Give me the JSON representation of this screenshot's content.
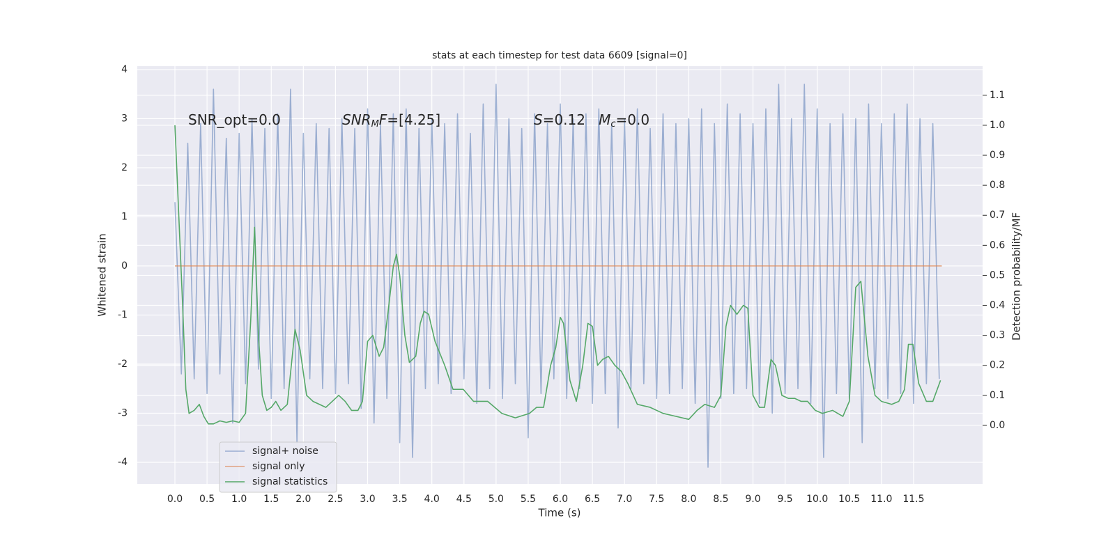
{
  "chart_data": {
    "type": "line",
    "title": "stats at each timestep for test data 6609 [signal=0]",
    "xlabel": "Time (s)",
    "ylabel": "Whitened strain",
    "y2label": "Detection probability/MF",
    "xlim": [
      -0.586,
      12.575
    ],
    "ylim": [
      -4.44,
      4.07
    ],
    "y2lim": [
      -0.195,
      1.197
    ],
    "grid": true,
    "legend": "lower left",
    "xticks": [
      {
        "value": 0,
        "label": "0.0"
      },
      0.5,
      {
        "value": 1,
        "label": "1.0"
      },
      1.5,
      {
        "value": 2,
        "label": "2.0"
      },
      2.5,
      {
        "value": 3,
        "label": "3.0"
      },
      3.5,
      {
        "value": 4,
        "label": "4.0"
      },
      4.5,
      {
        "value": 5,
        "label": "5.0"
      },
      5.5,
      {
        "value": 6,
        "label": "6.0"
      },
      6.5,
      {
        "value": 7,
        "label": "7.0"
      },
      7.5,
      {
        "value": 8,
        "label": "8.0"
      },
      8.5,
      {
        "value": 9,
        "label": "9.0"
      },
      9.5,
      {
        "value": 10,
        "label": "10.0"
      },
      10.5,
      {
        "value": 11,
        "label": "11.0"
      },
      11.5
    ],
    "yticks": [
      -4,
      -3,
      -2,
      -1,
      0,
      1,
      2,
      3,
      4
    ],
    "y2ticks": [
      {
        "value": 0,
        "label": "0.0"
      },
      0.1,
      0.2,
      0.3,
      0.4,
      0.5,
      0.6,
      0.7,
      0.8,
      0.9,
      {
        "value": 1,
        "label": "1.0"
      },
      1.1
    ],
    "annotations": [
      {
        "parts": [
          "SNR_opt=0.0"
        ]
      },
      {
        "parts": [
          "SNR",
          "M",
          "F",
          "=[4.25]"
        ]
      },
      {
        "parts": [
          "S",
          "=0.12   ",
          "M",
          "c",
          "=0.0"
        ]
      }
    ],
    "series": [
      {
        "name": "signal+ noise",
        "color": "#4c72b0",
        "opacity": 0.5,
        "x": [
          0,
          0.1,
          0.2,
          0.3,
          0.4,
          0.5,
          0.6,
          0.7,
          0.8,
          0.9,
          1,
          1.1,
          1.2,
          1.3,
          1.4,
          1.5,
          1.6,
          1.7,
          1.8,
          1.9,
          2,
          2.1,
          2.2,
          2.3,
          2.4,
          2.5,
          2.6,
          2.7,
          2.8,
          2.9,
          3,
          3.1,
          3.2,
          3.3,
          3.4,
          3.5,
          3.6,
          3.7,
          3.8,
          3.9,
          4,
          4.1,
          4.2,
          4.3,
          4.4,
          4.5,
          4.6,
          4.7,
          4.8,
          4.9,
          5,
          5.1,
          5.2,
          5.3,
          5.4,
          5.5,
          5.6,
          5.7,
          5.8,
          5.9,
          6,
          6.1,
          6.2,
          6.3,
          6.4,
          6.5,
          6.6,
          6.7,
          6.8,
          6.9,
          7,
          7.1,
          7.2,
          7.3,
          7.4,
          7.5,
          7.6,
          7.7,
          7.8,
          7.9,
          8,
          8.1,
          8.2,
          8.3,
          8.4,
          8.5,
          8.6,
          8.7,
          8.8,
          8.9,
          9,
          9.1,
          9.2,
          9.3,
          9.4,
          9.5,
          9.6,
          9.7,
          9.8,
          9.9,
          10,
          10.1,
          10.2,
          10.3,
          10.4,
          10.5,
          10.6,
          10.7,
          10.8,
          10.9,
          11,
          11.1,
          11.2,
          11.3,
          11.4,
          11.5,
          11.6,
          11.7,
          11.8,
          11.9
        ],
        "values": [
          1.3,
          -2.2,
          2.5,
          -2.3,
          2.9,
          -2.6,
          3.6,
          -2.2,
          2.6,
          -3.2,
          2.7,
          -2.4,
          3.0,
          -2.1,
          2.8,
          -2.7,
          3.1,
          -2.5,
          3.6,
          -3.6,
          2.7,
          -2.3,
          2.9,
          -2.5,
          2.8,
          -2.6,
          3.0,
          -2.4,
          2.8,
          -2.9,
          3.2,
          -3.2,
          2.9,
          -2.7,
          3.1,
          -3.6,
          3.2,
          -3.9,
          2.8,
          -2.5,
          3.0,
          -2.4,
          2.9,
          -2.6,
          3.1,
          -2.3,
          2.7,
          -2.8,
          3.3,
          -2.5,
          3.7,
          -2.7,
          3.0,
          -2.4,
          2.8,
          -3.5,
          3.1,
          -2.6,
          2.9,
          -2.3,
          3.3,
          -2.7,
          3.0,
          -2.5,
          3.1,
          -2.8,
          3.2,
          -2.6,
          2.9,
          -3.3,
          3.0,
          -2.5,
          3.2,
          -2.4,
          2.8,
          -2.7,
          3.1,
          -2.6,
          2.9,
          -2.5,
          3.0,
          -2.8,
          3.2,
          -4.1,
          2.9,
          -2.7,
          3.3,
          -2.6,
          3.1,
          -2.5,
          2.9,
          -2.8,
          3.2,
          -3.0,
          3.7,
          -2.6,
          3.0,
          -2.5,
          3.7,
          -2.8,
          3.2,
          -3.9,
          2.9,
          -2.6,
          3.1,
          -2.7,
          3.0,
          -3.6,
          3.3,
          -2.5,
          2.9,
          -2.7,
          3.1,
          -2.6,
          3.3,
          -2.8,
          3.0,
          -2.4,
          2.9,
          -2.3
        ]
      },
      {
        "name": "signal only",
        "color": "#dd8452",
        "opacity": 0.7,
        "x": [
          0,
          11.94
        ],
        "values": [
          0,
          0
        ]
      },
      {
        "name": "signal statistics",
        "color": "#55a868",
        "opacity": 1,
        "axis": "y2",
        "x": [
          0,
          0.05,
          0.12,
          0.17,
          0.22,
          0.3,
          0.38,
          0.45,
          0.52,
          0.6,
          0.7,
          0.8,
          0.9,
          1.0,
          1.1,
          1.18,
          1.24,
          1.3,
          1.36,
          1.43,
          1.5,
          1.57,
          1.65,
          1.75,
          1.87,
          1.95,
          2.05,
          2.15,
          2.25,
          2.35,
          2.45,
          2.55,
          2.65,
          2.75,
          2.85,
          2.92,
          3.0,
          3.08,
          3.18,
          3.25,
          3.32,
          3.4,
          3.45,
          3.5,
          3.58,
          3.65,
          3.75,
          3.82,
          3.88,
          3.95,
          4.05,
          4.2,
          4.33,
          4.49,
          4.65,
          4.87,
          5.09,
          5.3,
          5.52,
          5.63,
          5.74,
          5.85,
          5.93,
          6.0,
          6.05,
          6.15,
          6.25,
          6.35,
          6.43,
          6.5,
          6.58,
          6.66,
          6.75,
          6.85,
          6.95,
          7.05,
          7.2,
          7.4,
          7.6,
          7.8,
          8.0,
          8.13,
          8.25,
          8.4,
          8.5,
          8.58,
          8.65,
          8.75,
          8.85,
          8.92,
          9.0,
          9.1,
          9.18,
          9.28,
          9.35,
          9.45,
          9.55,
          9.65,
          9.75,
          9.85,
          9.97,
          10.08,
          10.24,
          10.4,
          10.5,
          10.6,
          10.68,
          10.79,
          10.9,
          11.0,
          11.16,
          11.27,
          11.36,
          11.42,
          11.49,
          11.58,
          11.7,
          11.8,
          11.92
        ],
        "values": [
          1.0,
          0.75,
          0.4,
          0.12,
          0.04,
          0.05,
          0.07,
          0.03,
          0.005,
          0.005,
          0.015,
          0.01,
          0.015,
          0.01,
          0.04,
          0.35,
          0.66,
          0.3,
          0.1,
          0.05,
          0.06,
          0.08,
          0.05,
          0.07,
          0.32,
          0.25,
          0.1,
          0.08,
          0.07,
          0.06,
          0.08,
          0.1,
          0.08,
          0.05,
          0.05,
          0.08,
          0.28,
          0.3,
          0.23,
          0.26,
          0.38,
          0.53,
          0.57,
          0.5,
          0.3,
          0.21,
          0.23,
          0.34,
          0.38,
          0.37,
          0.28,
          0.2,
          0.12,
          0.12,
          0.08,
          0.08,
          0.04,
          0.025,
          0.04,
          0.06,
          0.06,
          0.2,
          0.26,
          0.36,
          0.34,
          0.15,
          0.08,
          0.2,
          0.34,
          0.33,
          0.2,
          0.22,
          0.23,
          0.2,
          0.18,
          0.14,
          0.07,
          0.06,
          0.04,
          0.03,
          0.02,
          0.05,
          0.07,
          0.06,
          0.1,
          0.33,
          0.4,
          0.37,
          0.4,
          0.39,
          0.1,
          0.06,
          0.06,
          0.22,
          0.2,
          0.1,
          0.09,
          0.09,
          0.08,
          0.08,
          0.05,
          0.04,
          0.05,
          0.03,
          0.08,
          0.46,
          0.48,
          0.23,
          0.1,
          0.08,
          0.07,
          0.08,
          0.12,
          0.27,
          0.27,
          0.14,
          0.08,
          0.08,
          0.15
        ]
      }
    ]
  }
}
